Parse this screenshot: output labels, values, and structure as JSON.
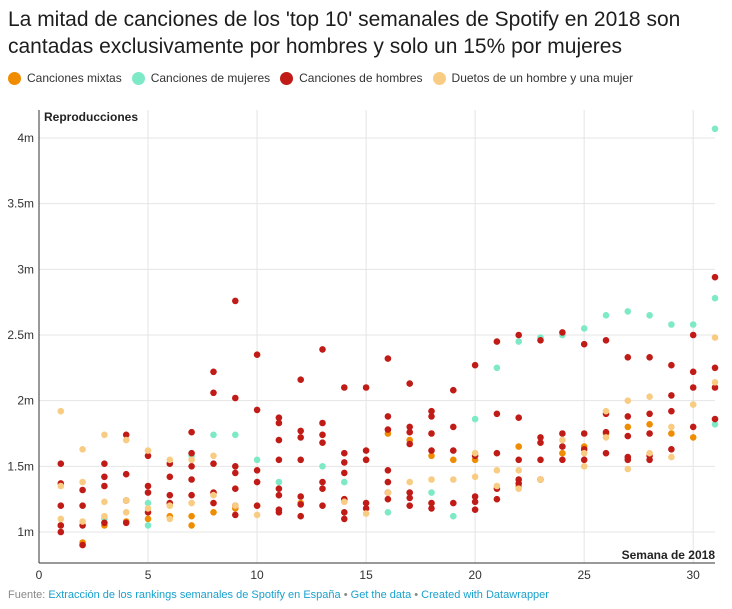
{
  "title": "La mitad de canciones de los 'top 10' semanales de Spotify en 2018 son cantadas exclusivamente por hombres y solo un 15% por mujeres",
  "legend": {
    "items": [
      {
        "label": "Canciones mixtas",
        "color": "#f08c00"
      },
      {
        "label": "Canciones de mujeres",
        "color": "#7ee9c6"
      },
      {
        "label": "Canciones de hombres",
        "color": "#c11b17"
      },
      {
        "label": "Duetos de un hombre y una mujer",
        "color": "#f8cc82"
      }
    ]
  },
  "footer": {
    "prefix": "Fuente:",
    "source": "Extracción de los rankings semanales de Spotify en España",
    "sep1": "•",
    "get_data": "Get the data",
    "sep2": "•",
    "created": "Created with Datawrapper"
  },
  "chart_data": {
    "type": "scatter",
    "ylabel": "Reproducciones",
    "xlabel": "Semana de 2018",
    "xlim": [
      0,
      31
    ],
    "ylim": [
      0.85,
      4.1
    ],
    "grid": true,
    "legend_position": "top",
    "x_ticks": [
      0,
      5,
      10,
      15,
      20,
      25,
      30
    ],
    "y_ticks": [
      {
        "value": 1,
        "label": "1m"
      },
      {
        "value": 1.5,
        "label": "1.5m"
      },
      {
        "value": 2,
        "label": "2m"
      },
      {
        "value": 2.5,
        "label": "2.5m"
      },
      {
        "value": 3,
        "label": "3m"
      },
      {
        "value": 3.5,
        "label": "3.5m"
      },
      {
        "value": 4,
        "label": "4m"
      }
    ],
    "series": [
      {
        "name": "Canciones mixtas",
        "color": "#f08c00",
        "points": [
          [
            1,
            1.05
          ],
          [
            2,
            0.92
          ],
          [
            3,
            1.05
          ],
          [
            4,
            1.08
          ],
          [
            5,
            1.1
          ],
          [
            6,
            1.12
          ],
          [
            7,
            1.05
          ],
          [
            7,
            1.12
          ],
          [
            8,
            1.15
          ],
          [
            9,
            1.18
          ],
          [
            10,
            1.2
          ],
          [
            12,
            1.22
          ],
          [
            14,
            1.25
          ],
          [
            15,
            1.55
          ],
          [
            16,
            1.75
          ],
          [
            17,
            1.7
          ],
          [
            18,
            1.58
          ],
          [
            19,
            1.55
          ],
          [
            20,
            1.55
          ],
          [
            22,
            1.65
          ],
          [
            22,
            1.35
          ],
          [
            24,
            1.6
          ],
          [
            25,
            1.65
          ],
          [
            26,
            1.75
          ],
          [
            27,
            1.8
          ],
          [
            28,
            1.82
          ],
          [
            29,
            1.75
          ],
          [
            30,
            1.72
          ]
        ]
      },
      {
        "name": "Canciones de mujeres",
        "color": "#7ee9c6",
        "points": [
          [
            3,
            1.1
          ],
          [
            5,
            1.05
          ],
          [
            5,
            1.22
          ],
          [
            7,
            1.58
          ],
          [
            8,
            1.74
          ],
          [
            9,
            1.74
          ],
          [
            10,
            1.55
          ],
          [
            11,
            1.38
          ],
          [
            13,
            1.5
          ],
          [
            14,
            1.38
          ],
          [
            16,
            1.15
          ],
          [
            18,
            1.3
          ],
          [
            19,
            1.12
          ],
          [
            20,
            1.86
          ],
          [
            21,
            2.25
          ],
          [
            22,
            2.45
          ],
          [
            23,
            2.48
          ],
          [
            24,
            2.5
          ],
          [
            25,
            2.55
          ],
          [
            26,
            2.65
          ],
          [
            27,
            2.68
          ],
          [
            28,
            2.65
          ],
          [
            29,
            2.58
          ],
          [
            30,
            2.58
          ],
          [
            31,
            2.78
          ],
          [
            31,
            4.07
          ],
          [
            31,
            1.82
          ]
        ]
      },
      {
        "name": "Canciones de hombres",
        "color": "#c11b17",
        "points": [
          [
            1,
            1.52
          ],
          [
            1,
            1.37
          ],
          [
            1,
            1.2
          ],
          [
            1,
            1.05
          ],
          [
            1,
            1.0
          ],
          [
            2,
            1.32
          ],
          [
            2,
            1.2
          ],
          [
            2,
            1.05
          ],
          [
            2,
            0.9
          ],
          [
            3,
            1.52
          ],
          [
            3,
            1.42
          ],
          [
            3,
            1.35
          ],
          [
            3,
            1.07
          ],
          [
            4,
            1.74
          ],
          [
            4,
            1.44
          ],
          [
            4,
            1.24
          ],
          [
            4,
            1.07
          ],
          [
            5,
            1.58
          ],
          [
            5,
            1.35
          ],
          [
            5,
            1.3
          ],
          [
            5,
            1.15
          ],
          [
            6,
            1.52
          ],
          [
            6,
            1.42
          ],
          [
            6,
            1.28
          ],
          [
            6,
            1.22
          ],
          [
            7,
            1.76
          ],
          [
            7,
            1.6
          ],
          [
            7,
            1.5
          ],
          [
            7,
            1.4
          ],
          [
            7,
            1.28
          ],
          [
            8,
            2.22
          ],
          [
            8,
            2.06
          ],
          [
            8,
            1.52
          ],
          [
            8,
            1.3
          ],
          [
            8,
            1.22
          ],
          [
            9,
            2.76
          ],
          [
            9,
            2.02
          ],
          [
            9,
            1.5
          ],
          [
            9,
            1.45
          ],
          [
            9,
            1.33
          ],
          [
            9,
            1.2
          ],
          [
            9,
            1.13
          ],
          [
            10,
            2.35
          ],
          [
            10,
            1.93
          ],
          [
            10,
            1.47
          ],
          [
            10,
            1.38
          ],
          [
            10,
            1.2
          ],
          [
            11,
            1.87
          ],
          [
            11,
            1.83
          ],
          [
            11,
            1.7
          ],
          [
            11,
            1.55
          ],
          [
            11,
            1.33
          ],
          [
            11,
            1.28
          ],
          [
            11,
            1.17
          ],
          [
            11,
            1.15
          ],
          [
            12,
            2.16
          ],
          [
            12,
            1.77
          ],
          [
            12,
            1.72
          ],
          [
            12,
            1.55
          ],
          [
            12,
            1.27
          ],
          [
            12,
            1.21
          ],
          [
            12,
            1.12
          ],
          [
            13,
            2.39
          ],
          [
            13,
            1.83
          ],
          [
            13,
            1.74
          ],
          [
            13,
            1.68
          ],
          [
            13,
            1.38
          ],
          [
            13,
            1.33
          ],
          [
            13,
            1.2
          ],
          [
            14,
            2.1
          ],
          [
            14,
            1.6
          ],
          [
            14,
            1.53
          ],
          [
            14,
            1.45
          ],
          [
            14,
            1.25
          ],
          [
            14,
            1.15
          ],
          [
            14,
            1.1
          ],
          [
            15,
            2.1
          ],
          [
            15,
            1.62
          ],
          [
            15,
            1.55
          ],
          [
            15,
            1.22
          ],
          [
            15,
            1.18
          ],
          [
            16,
            2.32
          ],
          [
            16,
            1.88
          ],
          [
            16,
            1.78
          ],
          [
            16,
            1.47
          ],
          [
            16,
            1.38
          ],
          [
            16,
            1.3
          ],
          [
            16,
            1.25
          ],
          [
            17,
            2.13
          ],
          [
            17,
            1.8
          ],
          [
            17,
            1.76
          ],
          [
            17,
            1.67
          ],
          [
            17,
            1.3
          ],
          [
            17,
            1.26
          ],
          [
            17,
            1.2
          ],
          [
            18,
            1.92
          ],
          [
            18,
            1.88
          ],
          [
            18,
            1.75
          ],
          [
            18,
            1.62
          ],
          [
            18,
            1.22
          ],
          [
            18,
            1.18
          ],
          [
            19,
            2.08
          ],
          [
            19,
            1.8
          ],
          [
            19,
            1.62
          ],
          [
            19,
            1.22
          ],
          [
            20,
            2.27
          ],
          [
            20,
            1.58
          ],
          [
            20,
            1.27
          ],
          [
            20,
            1.23
          ],
          [
            20,
            1.17
          ],
          [
            21,
            2.45
          ],
          [
            21,
            1.9
          ],
          [
            21,
            1.6
          ],
          [
            21,
            1.33
          ],
          [
            21,
            1.25
          ],
          [
            22,
            2.5
          ],
          [
            22,
            1.87
          ],
          [
            22,
            1.55
          ],
          [
            22,
            1.4
          ],
          [
            22,
            1.37
          ],
          [
            23,
            2.46
          ],
          [
            23,
            1.72
          ],
          [
            23,
            1.68
          ],
          [
            23,
            1.55
          ],
          [
            23,
            1.4
          ],
          [
            24,
            2.52
          ],
          [
            24,
            1.75
          ],
          [
            24,
            1.65
          ],
          [
            24,
            1.55
          ],
          [
            25,
            2.43
          ],
          [
            25,
            1.75
          ],
          [
            25,
            1.63
          ],
          [
            25,
            1.55
          ],
          [
            26,
            2.46
          ],
          [
            26,
            1.9
          ],
          [
            26,
            1.76
          ],
          [
            26,
            1.6
          ],
          [
            27,
            2.33
          ],
          [
            27,
            1.88
          ],
          [
            27,
            1.73
          ],
          [
            27,
            1.57
          ],
          [
            27,
            1.55
          ],
          [
            28,
            2.33
          ],
          [
            28,
            1.9
          ],
          [
            28,
            1.75
          ],
          [
            28,
            1.58
          ],
          [
            28,
            1.55
          ],
          [
            29,
            2.27
          ],
          [
            29,
            2.04
          ],
          [
            29,
            1.92
          ],
          [
            29,
            1.63
          ],
          [
            30,
            2.5
          ],
          [
            30,
            2.22
          ],
          [
            30,
            2.1
          ],
          [
            30,
            1.8
          ],
          [
            31,
            2.94
          ],
          [
            31,
            2.25
          ],
          [
            31,
            2.1
          ],
          [
            31,
            1.86
          ]
        ]
      },
      {
        "name": "Duetos de un hombre y una mujer",
        "color": "#f8cc82",
        "points": [
          [
            1,
            1.92
          ],
          [
            1,
            1.35
          ],
          [
            1,
            1.1
          ],
          [
            2,
            1.63
          ],
          [
            2,
            1.38
          ],
          [
            2,
            1.08
          ],
          [
            3,
            1.74
          ],
          [
            3,
            1.23
          ],
          [
            3,
            1.12
          ],
          [
            4,
            1.7
          ],
          [
            4,
            1.24
          ],
          [
            4,
            1.15
          ],
          [
            5,
            1.62
          ],
          [
            5,
            1.18
          ],
          [
            6,
            1.55
          ],
          [
            6,
            1.2
          ],
          [
            6,
            1.1
          ],
          [
            7,
            1.55
          ],
          [
            7,
            1.22
          ],
          [
            8,
            1.58
          ],
          [
            8,
            1.28
          ],
          [
            9,
            1.2
          ],
          [
            10,
            1.13
          ],
          [
            14,
            1.23
          ],
          [
            15,
            1.14
          ],
          [
            16,
            1.3
          ],
          [
            17,
            1.38
          ],
          [
            18,
            1.4
          ],
          [
            19,
            1.4
          ],
          [
            20,
            1.6
          ],
          [
            20,
            1.42
          ],
          [
            21,
            1.47
          ],
          [
            21,
            1.35
          ],
          [
            22,
            1.47
          ],
          [
            22,
            1.33
          ],
          [
            23,
            1.4
          ],
          [
            24,
            1.7
          ],
          [
            25,
            1.5
          ],
          [
            25,
            1.6
          ],
          [
            26,
            1.92
          ],
          [
            26,
            1.72
          ],
          [
            27,
            2.0
          ],
          [
            27,
            1.48
          ],
          [
            28,
            2.03
          ],
          [
            28,
            1.6
          ],
          [
            29,
            1.8
          ],
          [
            29,
            1.57
          ],
          [
            30,
            1.97
          ],
          [
            31,
            2.48
          ],
          [
            31,
            2.14
          ]
        ]
      }
    ]
  }
}
